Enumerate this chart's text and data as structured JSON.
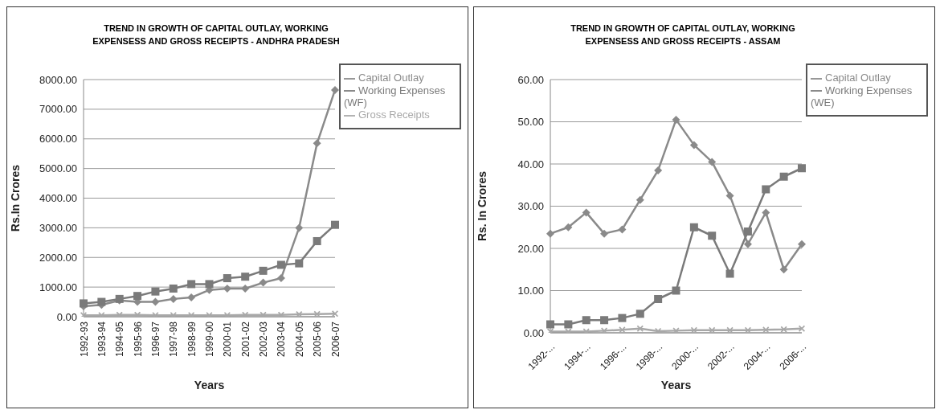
{
  "chart_data": [
    {
      "type": "line",
      "title": "TREND IN GROWTH OF CAPITAL OUTLAY, WORKING EXPENSESS AND GROSS RECEIPTS - ANDHRA PRADESH",
      "xlabel": "Years",
      "ylabel": "Rs.In Crores",
      "categories": [
        "1992-93",
        "1993-94",
        "1994-95",
        "1995-96",
        "1996-97",
        "1997-98",
        "1998-99",
        "1999-00",
        "2000-01",
        "2001-02",
        "2002-03",
        "2003-04",
        "2004-05",
        "2005-06",
        "2006-07"
      ],
      "series": [
        {
          "name": "Capital Outlay",
          "color": "#8a8a8a",
          "marker": "diamond",
          "values": [
            350,
            400,
            550,
            500,
            500,
            600,
            650,
            900,
            950,
            950,
            1150,
            1300,
            3000,
            5850,
            7650
          ]
        },
        {
          "name": "Working Expenses (WF)",
          "color": "#7a7a7a",
          "marker": "square",
          "values": [
            450,
            500,
            600,
            700,
            850,
            950,
            1100,
            1100,
            1300,
            1350,
            1550,
            1750,
            1800,
            2550,
            3100
          ]
        },
        {
          "name": "Gross Receipts",
          "color": "#a8a8a8",
          "marker": "cross",
          "values": [
            50,
            50,
            60,
            60,
            50,
            50,
            50,
            50,
            50,
            60,
            60,
            60,
            80,
            90,
            100
          ]
        }
      ],
      "ylim": [
        0,
        8000
      ],
      "yticks": [
        {
          "value": 0,
          "label": "0.00"
        },
        {
          "value": 1000,
          "label": "1000.00"
        },
        {
          "value": 2000,
          "label": "2000.00"
        },
        {
          "value": 3000,
          "label": "3000.00"
        },
        {
          "value": 4000,
          "label": "4000.00"
        },
        {
          "value": 5000,
          "label": "5000.00"
        },
        {
          "value": 6000,
          "label": "6000.00"
        },
        {
          "value": 7000,
          "label": "7000.00"
        },
        {
          "value": 8000,
          "label": "8000.00"
        }
      ],
      "grid": "y",
      "legend": "right"
    },
    {
      "type": "line",
      "title": "TREND IN GROWTH OF CAPITAL OUTLAY, WORKING EXPENSESS AND GROSS RECEIPTS - ASSAM",
      "xlabel": "Years",
      "ylabel": "Rs. In Crores",
      "categories": [
        "1992-...",
        null,
        "1994-...",
        null,
        "1996-...",
        null,
        "1998-...",
        null,
        "2000-...",
        null,
        "2002-...",
        null,
        "2004-...",
        null,
        "2006-..."
      ],
      "series": [
        {
          "name": "Capital Outlay",
          "color": "#8a8a8a",
          "marker": "diamond",
          "values": [
            23.5,
            25,
            28.5,
            23.5,
            24.5,
            31.5,
            38.5,
            50.5,
            44.5,
            40.5,
            32.5,
            21,
            28.5,
            15,
            21
          ]
        },
        {
          "name": "Working Expenses (WE)",
          "color": "#7a7a7a",
          "marker": "square",
          "values": [
            2,
            2,
            3,
            3,
            3.5,
            4.5,
            8,
            10,
            25,
            23,
            14,
            24,
            34,
            37,
            39
          ]
        },
        {
          "color": "#a8a8a8",
          "marker": "cross",
          "values": [
            0.3,
            0.3,
            0.3,
            0.5,
            0.7,
            1,
            0.4,
            0.5,
            0.6,
            0.6,
            0.6,
            0.6,
            0.7,
            0.8,
            1
          ]
        }
      ],
      "ylim": [
        0,
        60
      ],
      "yticks": [
        {
          "value": 0,
          "label": "0.00"
        },
        {
          "value": 10,
          "label": "10.00"
        },
        {
          "value": 20,
          "label": "20.00"
        },
        {
          "value": 30,
          "label": "30.00"
        },
        {
          "value": 40,
          "label": "40.00"
        },
        {
          "value": 50,
          "label": "50.00"
        },
        {
          "value": 60,
          "label": "60.00"
        }
      ],
      "grid": "y",
      "legend": "right"
    }
  ]
}
